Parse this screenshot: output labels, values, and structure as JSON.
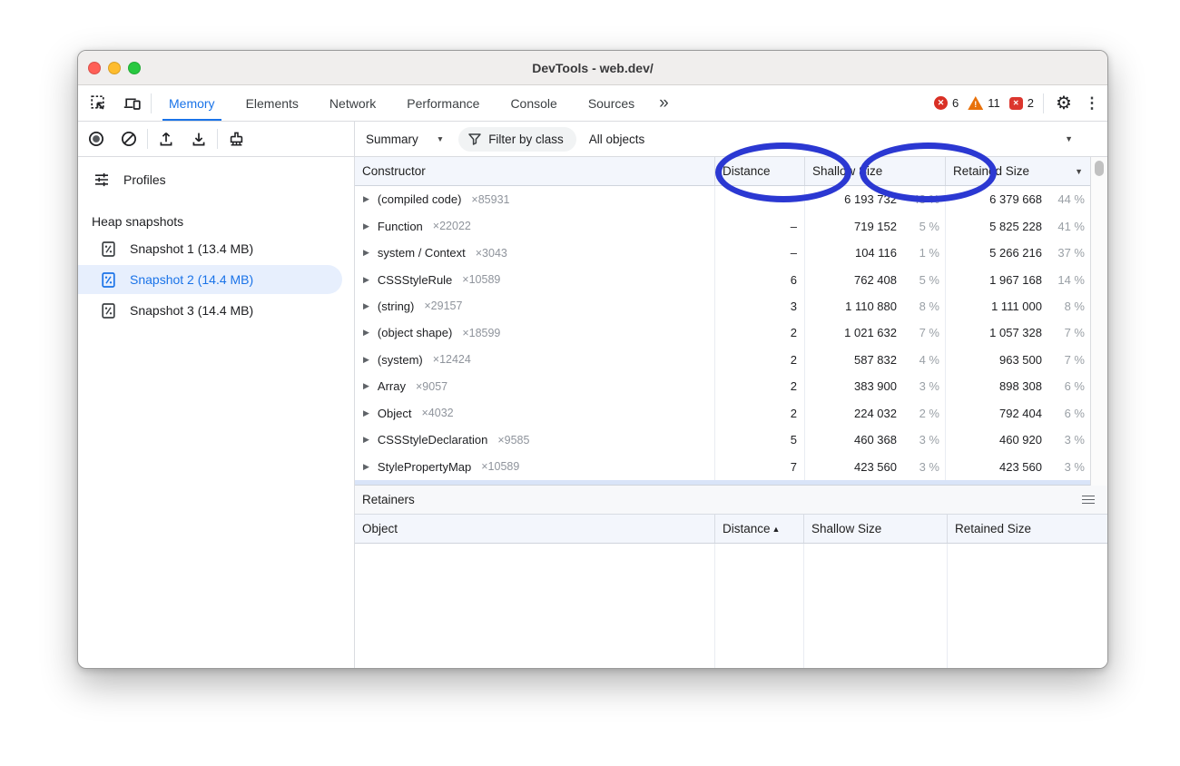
{
  "window": {
    "title": "DevTools - web.dev/"
  },
  "tabbar": {
    "tabs": [
      {
        "label": "Memory",
        "active": true
      },
      {
        "label": "Elements",
        "active": false
      },
      {
        "label": "Network",
        "active": false
      },
      {
        "label": "Performance",
        "active": false
      },
      {
        "label": "Console",
        "active": false
      },
      {
        "label": "Sources",
        "active": false
      }
    ],
    "more_label": "»",
    "error_count": "6",
    "warning_count": "11",
    "issue_count": "2",
    "gear_icon": "⚙",
    "kebab_icon": "⋮"
  },
  "toolbar": {
    "view_select": "Summary",
    "filter_label": "Filter by class",
    "scope_select": "All objects",
    "caret": "▼"
  },
  "sidebar": {
    "profiles_label": "Profiles",
    "heading": "Heap snapshots",
    "snapshots": [
      {
        "label": "Snapshot 1 (13.4 MB)",
        "selected": false
      },
      {
        "label": "Snapshot 2 (14.4 MB)",
        "selected": true
      },
      {
        "label": "Snapshot 3 (14.4 MB)",
        "selected": false
      }
    ]
  },
  "heap_table": {
    "columns": {
      "constructor": "Constructor",
      "distance": "Distance",
      "shallow": "Shallow Size",
      "retained": "Retained Size"
    },
    "sort_desc_icon": "▼",
    "expander_icon": "▶",
    "rows": [
      {
        "name": "(compiled code)",
        "count": "×85931",
        "distance": "–",
        "shallow": "6 193 732",
        "shallow_pct": "43 %",
        "retained": "6 379 668",
        "retained_pct": "44 %"
      },
      {
        "name": "Function",
        "count": "×22022",
        "distance": "–",
        "shallow": "719 152",
        "shallow_pct": "5 %",
        "retained": "5 825 228",
        "retained_pct": "41 %"
      },
      {
        "name": "system / Context",
        "count": "×3043",
        "distance": "–",
        "shallow": "104 116",
        "shallow_pct": "1 %",
        "retained": "5 266 216",
        "retained_pct": "37 %"
      },
      {
        "name": "CSSStyleRule",
        "count": "×10589",
        "distance": "6",
        "shallow": "762 408",
        "shallow_pct": "5 %",
        "retained": "1 967 168",
        "retained_pct": "14 %"
      },
      {
        "name": "(string)",
        "count": "×29157",
        "distance": "3",
        "shallow": "1 110 880",
        "shallow_pct": "8 %",
        "retained": "1 111 000",
        "retained_pct": "8 %"
      },
      {
        "name": "(object shape)",
        "count": "×18599",
        "distance": "2",
        "shallow": "1 021 632",
        "shallow_pct": "7 %",
        "retained": "1 057 328",
        "retained_pct": "7 %"
      },
      {
        "name": "(system)",
        "count": "×12424",
        "distance": "2",
        "shallow": "587 832",
        "shallow_pct": "4 %",
        "retained": "963 500",
        "retained_pct": "7 %"
      },
      {
        "name": "Array",
        "count": "×9057",
        "distance": "2",
        "shallow": "383 900",
        "shallow_pct": "3 %",
        "retained": "898 308",
        "retained_pct": "6 %"
      },
      {
        "name": "Object",
        "count": "×4032",
        "distance": "2",
        "shallow": "224 032",
        "shallow_pct": "2 %",
        "retained": "792 404",
        "retained_pct": "6 %"
      },
      {
        "name": "CSSStyleDeclaration",
        "count": "×9585",
        "distance": "5",
        "shallow": "460 368",
        "shallow_pct": "3 %",
        "retained": "460 920",
        "retained_pct": "3 %"
      },
      {
        "name": "StylePropertyMap",
        "count": "×10589",
        "distance": "7",
        "shallow": "423 560",
        "shallow_pct": "3 %",
        "retained": "423 560",
        "retained_pct": "3 %"
      }
    ]
  },
  "retainers": {
    "title": "Retainers",
    "columns": {
      "object": "Object",
      "distance": "Distance",
      "shallow": "Shallow Size",
      "retained": "Retained Size"
    },
    "sort_asc_icon": "▲"
  },
  "annotation": {
    "color": "#2b38d2",
    "highlighted": [
      "Shallow Size",
      "Retained Size"
    ]
  }
}
